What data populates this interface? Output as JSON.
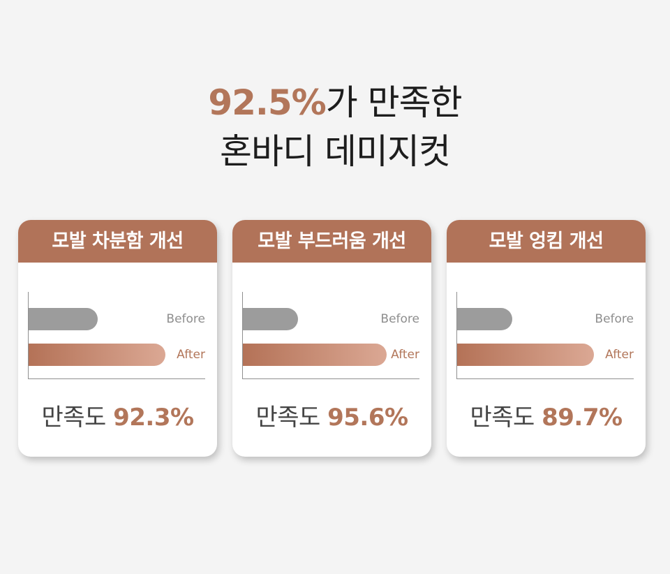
{
  "headline": {
    "highlight": "92.5%",
    "line1_rest": "가 만족한",
    "line2": "혼바디 데미지컷"
  },
  "colors": {
    "accent": "#b2765a",
    "header_bg": "#b17359",
    "before_bar": "#9c9c9c",
    "after_gradient_start": "#b47257",
    "after_gradient_end": "#dba894",
    "background": "#f4f4f4"
  },
  "cards": [
    {
      "title": "모발 차분함 개선",
      "before_label": "Before",
      "after_label": "After",
      "before_level_pct": 39,
      "after_level_pct": 77,
      "satisfaction_label": "만족도",
      "satisfaction_value": "92.3%"
    },
    {
      "title": "모발 부드러움 개선",
      "before_label": "Before",
      "after_label": "After",
      "before_level_pct": 31,
      "after_level_pct": 81,
      "satisfaction_label": "만족도",
      "satisfaction_value": "95.6%"
    },
    {
      "title": "모발 엉킴 개선",
      "before_label": "Before",
      "after_label": "After",
      "before_level_pct": 31,
      "after_level_pct": 77,
      "satisfaction_label": "만족도",
      "satisfaction_value": "89.7%"
    }
  ]
}
